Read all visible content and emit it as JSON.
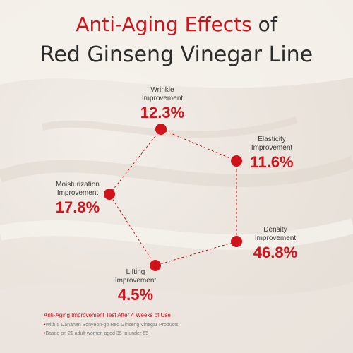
{
  "title": {
    "accent": "Anti-Aging Effects",
    "rest": " of",
    "line2": "Red Ginseng Vinegar Line"
  },
  "metrics": {
    "wrinkle": {
      "label1": "Wrinkle",
      "label2": "Improvement",
      "value": "12.3%"
    },
    "elasticity": {
      "label1": "Elasticity",
      "label2": "Improvement",
      "value": "11.6%"
    },
    "moisturization": {
      "label1": "Moisturization",
      "label2": "Improvement",
      "value": "17.8%"
    },
    "density": {
      "label1": "Density",
      "label2": "Improvement",
      "value": "46.8%"
    },
    "lifting": {
      "label1": "Lifting",
      "label2": "Improvement",
      "value": "4.5%"
    }
  },
  "footer": {
    "title": "Anti-Aging Improvement Test After 4 Weeks of Use",
    "bullets": [
      "With 5 Danahan Bonyeon-go Red Ginseng Vinegar Products",
      "Based on 21 adult women aged 35 to under 65"
    ]
  },
  "colors": {
    "accent": "#d0121b",
    "text": "#2c2c2c"
  }
}
